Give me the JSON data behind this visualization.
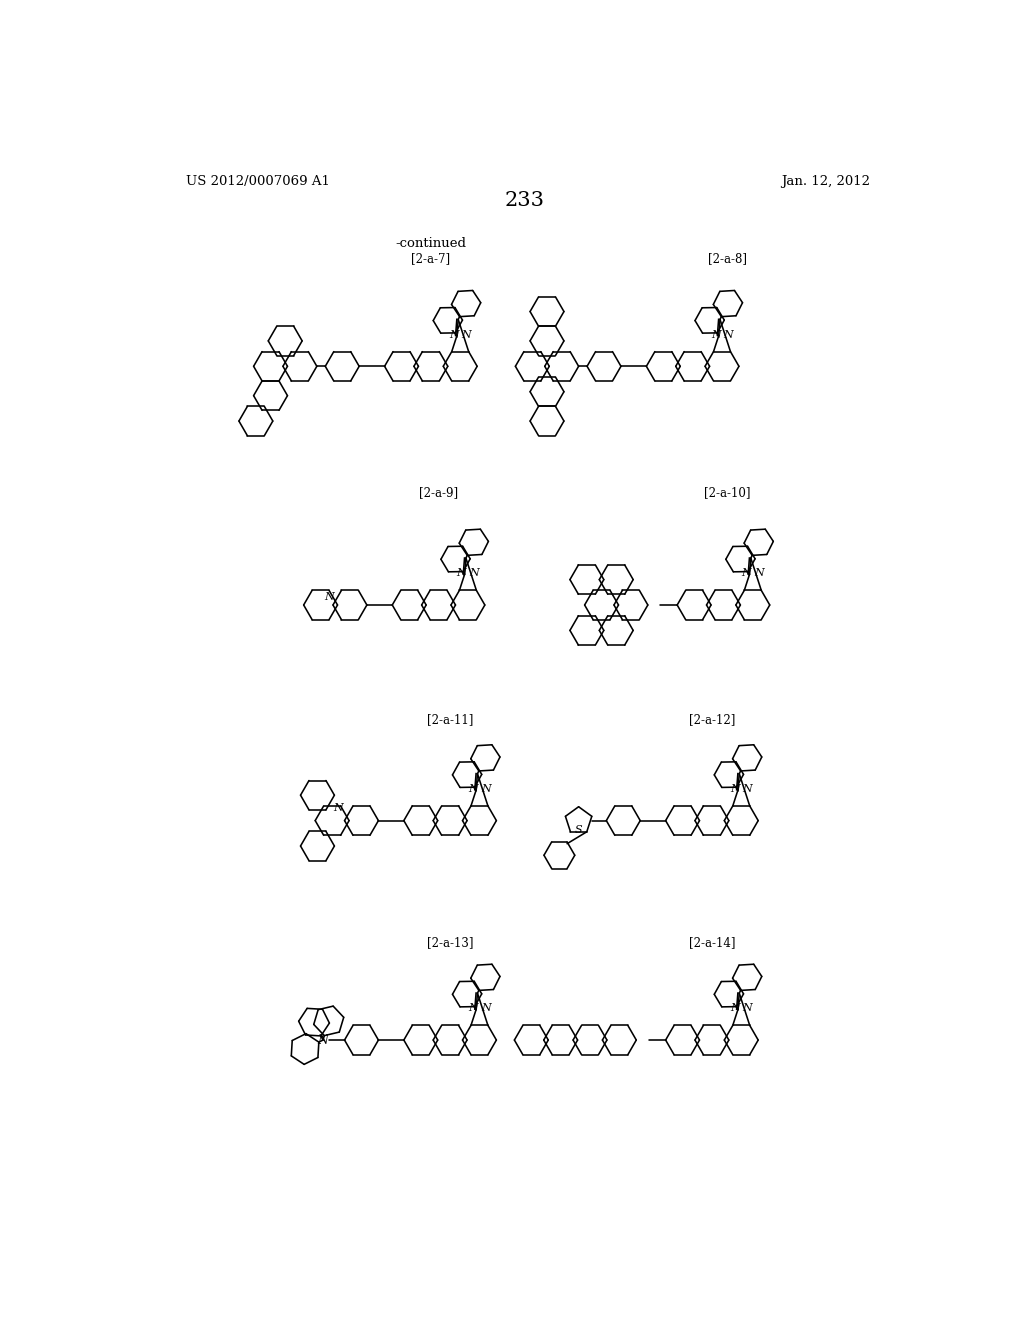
{
  "page_number": "233",
  "patent_number": "US 2012/0007069 A1",
  "patent_date": "Jan. 12, 2012",
  "continued_label": "-continued",
  "compound_labels": [
    "[2-a-7]",
    "[2-a-8]",
    "[2-a-9]",
    "[2-a-10]",
    "[2-a-11]",
    "[2-a-12]",
    "[2-a-13]",
    "[2-a-14]"
  ],
  "background_color": "#ffffff",
  "line_color": "#000000"
}
